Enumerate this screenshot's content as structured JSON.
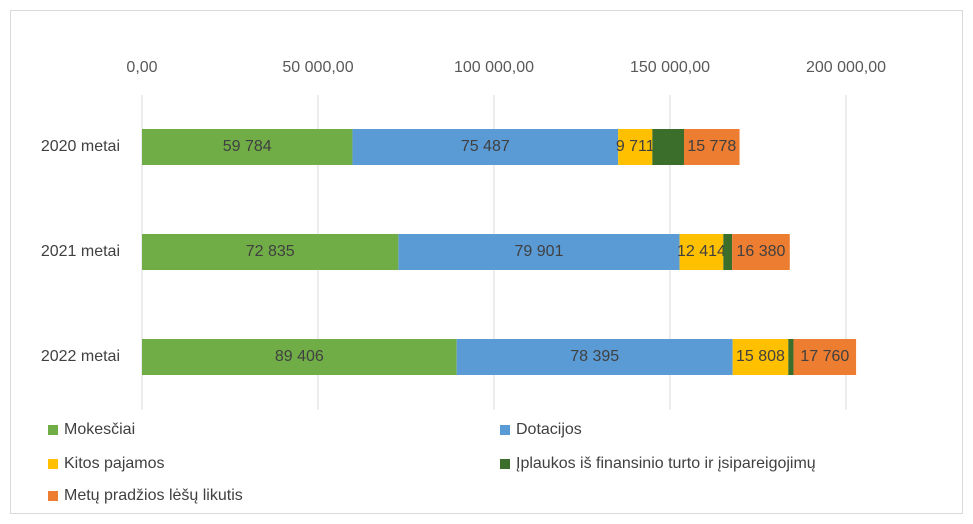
{
  "chart_data": {
    "type": "stacked_bar_horizontal",
    "categories": [
      "2020 metai",
      "2021 metai",
      "2022 metai"
    ],
    "series": [
      {
        "name": "Mokesčiai",
        "color": "#70ad47",
        "values": [
          59784,
          72835,
          89406
        ],
        "value_labels": [
          "59 784",
          "72 835",
          "89 406"
        ]
      },
      {
        "name": "Dotacijos",
        "color": "#5b9bd5",
        "values": [
          75487,
          79901,
          78395
        ],
        "value_labels": [
          "75 487",
          "79 901",
          "78 395"
        ]
      },
      {
        "name": "Kitos pajamos",
        "color": "#ffc000",
        "values": [
          9711,
          12414,
          15808
        ],
        "value_labels": [
          "9 711",
          "12 414",
          "15 808"
        ]
      },
      {
        "name": "Įplaukos iš finansinio turto ir įsipareigojimų",
        "color": "#3b6e2a",
        "values": [
          9000,
          2500,
          1500
        ]
      },
      {
        "name": "Metų pradžios lėšų likutis",
        "color": "#ed7d31",
        "values": [
          15778,
          16380,
          17760
        ],
        "value_labels": [
          "15 778",
          "16 380",
          "17 760"
        ]
      }
    ],
    "xlim": [
      0,
      200000
    ],
    "xticks": [
      {
        "value": 0,
        "label": "0,00"
      },
      {
        "value": 50000,
        "label": "50 000,00"
      },
      {
        "value": 100000,
        "label": "100 000,00"
      },
      {
        "value": 150000,
        "label": "150 000,00"
      },
      {
        "value": 200000,
        "label": "200 000,00"
      }
    ],
    "grid": true
  }
}
